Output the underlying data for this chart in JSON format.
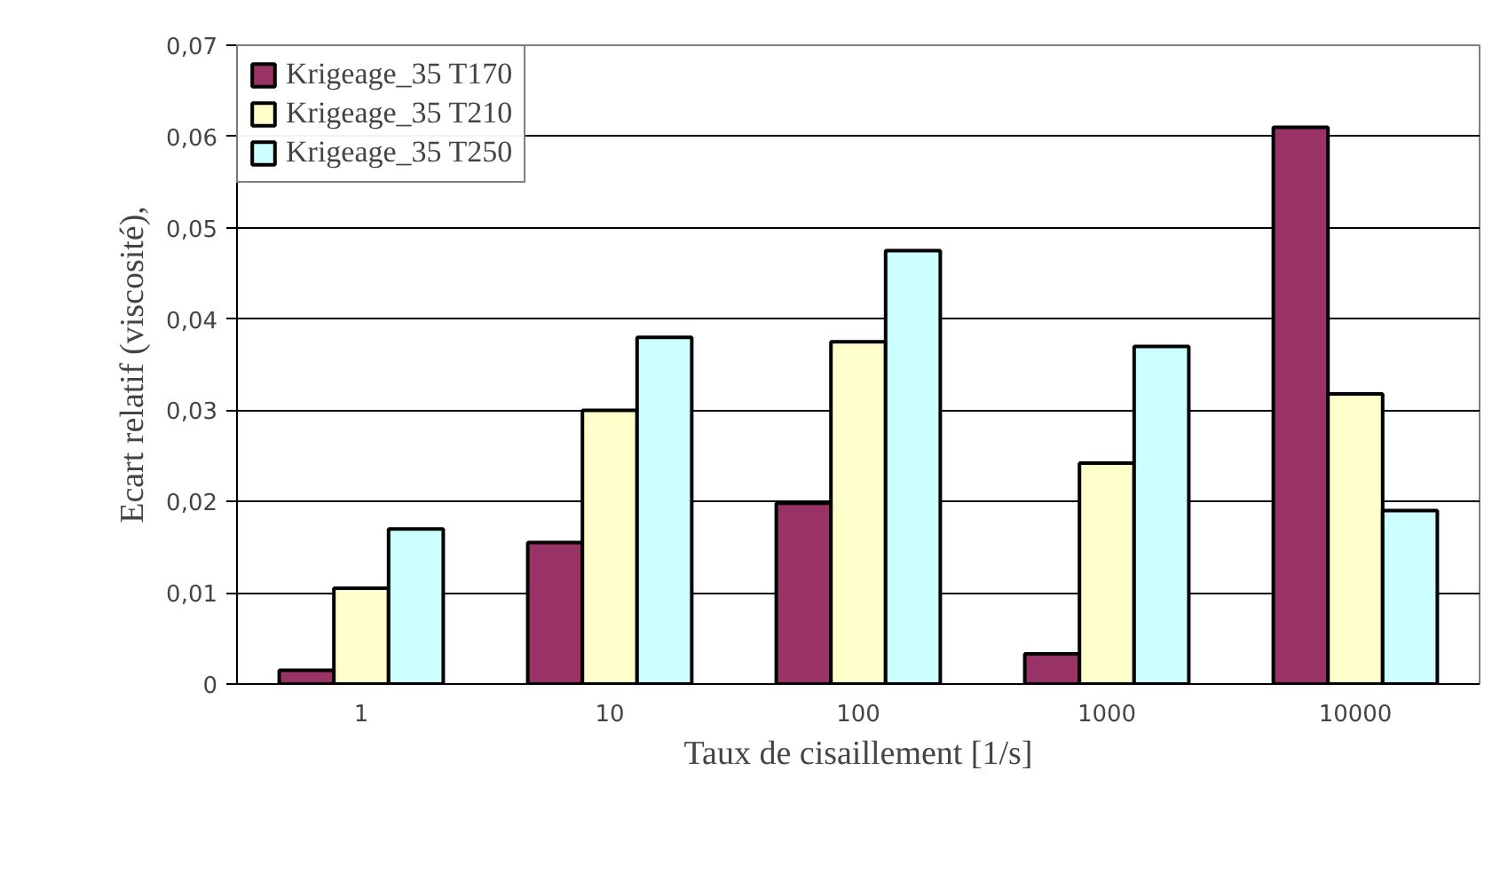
{
  "chart_data": {
    "type": "bar",
    "xlabel": "Taux de cisaillement [1/s]",
    "ylabel": "Ecart relatif (viscosité),",
    "categories": [
      "1",
      "10",
      "100",
      "1000",
      "10000"
    ],
    "series": [
      {
        "name": "Krigeage_35 T170",
        "color": "#993366",
        "values": [
          0.0015,
          0.0155,
          0.0198,
          0.0033,
          0.061
        ]
      },
      {
        "name": "Krigeage_35 T210",
        "color": "#ffffcc",
        "values": [
          0.0105,
          0.03,
          0.0375,
          0.0242,
          0.0318
        ]
      },
      {
        "name": "Krigeage_35 T250",
        "color": "#ccffff",
        "values": [
          0.017,
          0.038,
          0.0475,
          0.037,
          0.019
        ]
      }
    ],
    "ylim": [
      0,
      0.07
    ],
    "yticks": [
      {
        "value": 0,
        "label": "0"
      },
      {
        "value": 0.01,
        "label": "0,01"
      },
      {
        "value": 0.02,
        "label": "0,02"
      },
      {
        "value": 0.03,
        "label": "0,03"
      },
      {
        "value": 0.04,
        "label": "0,04"
      },
      {
        "value": 0.05,
        "label": "0,05"
      },
      {
        "value": 0.06,
        "label": "0,06"
      },
      {
        "value": 0.07,
        "label": "0,07"
      }
    ],
    "grid": "y",
    "legend": "top left"
  }
}
